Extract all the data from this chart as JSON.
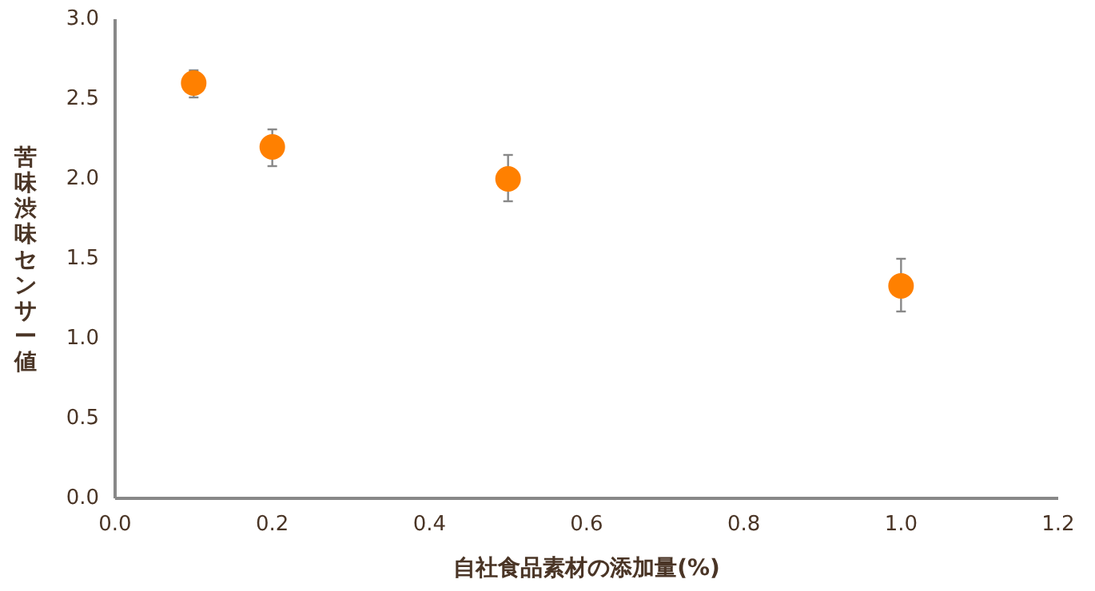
{
  "chart_data": {
    "type": "scatter",
    "xlabel": "自社食品素材の添加量(%)",
    "ylabel": "苦味渋味センサー値",
    "x": [
      0.1,
      0.2,
      0.5,
      1.0
    ],
    "series": [
      {
        "color": "#ff8000",
        "values": [
          2.6,
          2.2,
          2.0,
          1.33
        ],
        "errors": [
          [
            2.51,
            2.68
          ],
          [
            2.08,
            2.31
          ],
          [
            1.86,
            2.15
          ],
          [
            1.17,
            1.5
          ]
        ]
      }
    ],
    "xlim": [
      0,
      1.2
    ],
    "ylim": [
      0,
      3
    ],
    "xticks": [
      {
        "value": 0,
        "label": "0.0"
      },
      {
        "value": 0.2,
        "label": "0.2"
      },
      {
        "value": 0.4,
        "label": "0.4"
      },
      {
        "value": 0.6,
        "label": "0.6"
      },
      {
        "value": 0.8,
        "label": "0.8"
      },
      {
        "value": 1,
        "label": "1.0"
      },
      {
        "value": 1.2,
        "label": "1.2"
      }
    ],
    "yticks": [
      {
        "value": 0,
        "label": "0.0"
      },
      {
        "value": 0.5,
        "label": "0.5"
      },
      {
        "value": 1,
        "label": "1.0"
      },
      {
        "value": 1.5,
        "label": "1.5"
      },
      {
        "value": 2,
        "label": "2.0"
      },
      {
        "value": 2.5,
        "label": "2.5"
      },
      {
        "value": 3,
        "label": "3.0"
      }
    ],
    "grid": false,
    "marker": "circle"
  }
}
